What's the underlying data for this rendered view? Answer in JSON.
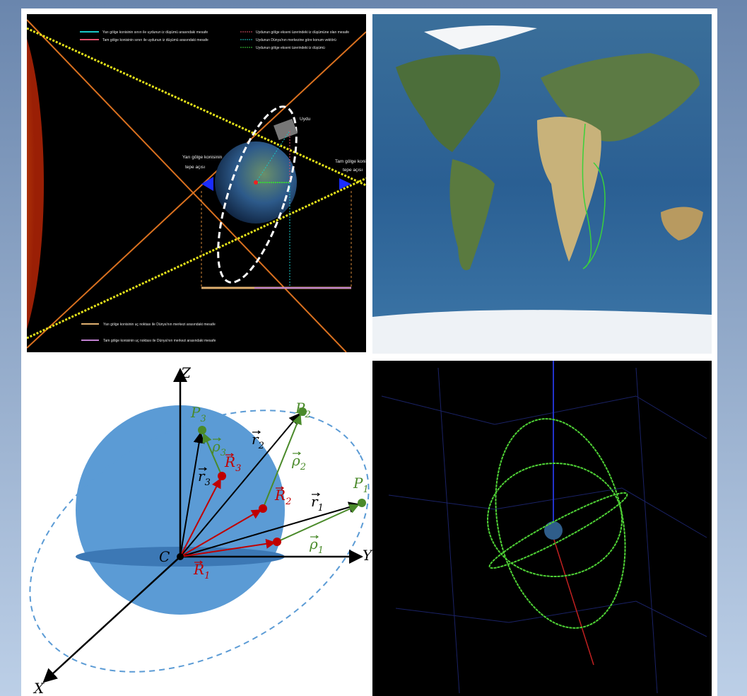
{
  "panels": {
    "shadow_diagram": {
      "legend": [
        "Yarı gölge konisinin sınırı ile uydunun iz düşümü arasındaki mesafe",
        "Tam gölge konisinin sınırı ile uydunun iz düşümü arasındaki mesafe",
        "Uydunun gölge ekseni üzerindeki iz düşümüne olan mesafe",
        "Uydunun Dünya'nın merkezine göre konum vektörü",
        "Uydunun gölge ekseni üzerindeki iz düşümü"
      ],
      "satellite": "Uydu",
      "penumbra_apex": [
        "Yarı gölge konisinin",
        "tepe açısı"
      ],
      "umbra_apex": [
        "Tam gölge konisi",
        "tepe açısı"
      ],
      "bottom_legend": [
        "Yarı gölge konisinin uç noktası ile Dünya'nın merkezi arasındaki mesafe",
        "Tam gölge konisinin uç noktası ile Dünya'nın merkezi arasındaki mesafe"
      ]
    },
    "orbit_geometry": {
      "axes": {
        "z": "Z",
        "x": "X",
        "y": "Y"
      },
      "center": "C",
      "points": [
        {
          "symbol": "P",
          "sub": "1"
        },
        {
          "symbol": "P",
          "sub": "2"
        },
        {
          "symbol": "P",
          "sub": "3"
        }
      ],
      "position_vectors": [
        {
          "symbol": "r",
          "sub": "1"
        },
        {
          "symbol": "r",
          "sub": "2"
        },
        {
          "symbol": "r",
          "sub": "3"
        }
      ],
      "station_vectors": [
        {
          "symbol": "R",
          "sub": "1"
        },
        {
          "symbol": "R",
          "sub": "2"
        },
        {
          "symbol": "R",
          "sub": "3"
        }
      ],
      "range_vectors": [
        {
          "symbol": "ρ",
          "sub": "1"
        },
        {
          "symbol": "ρ",
          "sub": "2"
        },
        {
          "symbol": "ρ",
          "sub": "3"
        }
      ]
    }
  }
}
